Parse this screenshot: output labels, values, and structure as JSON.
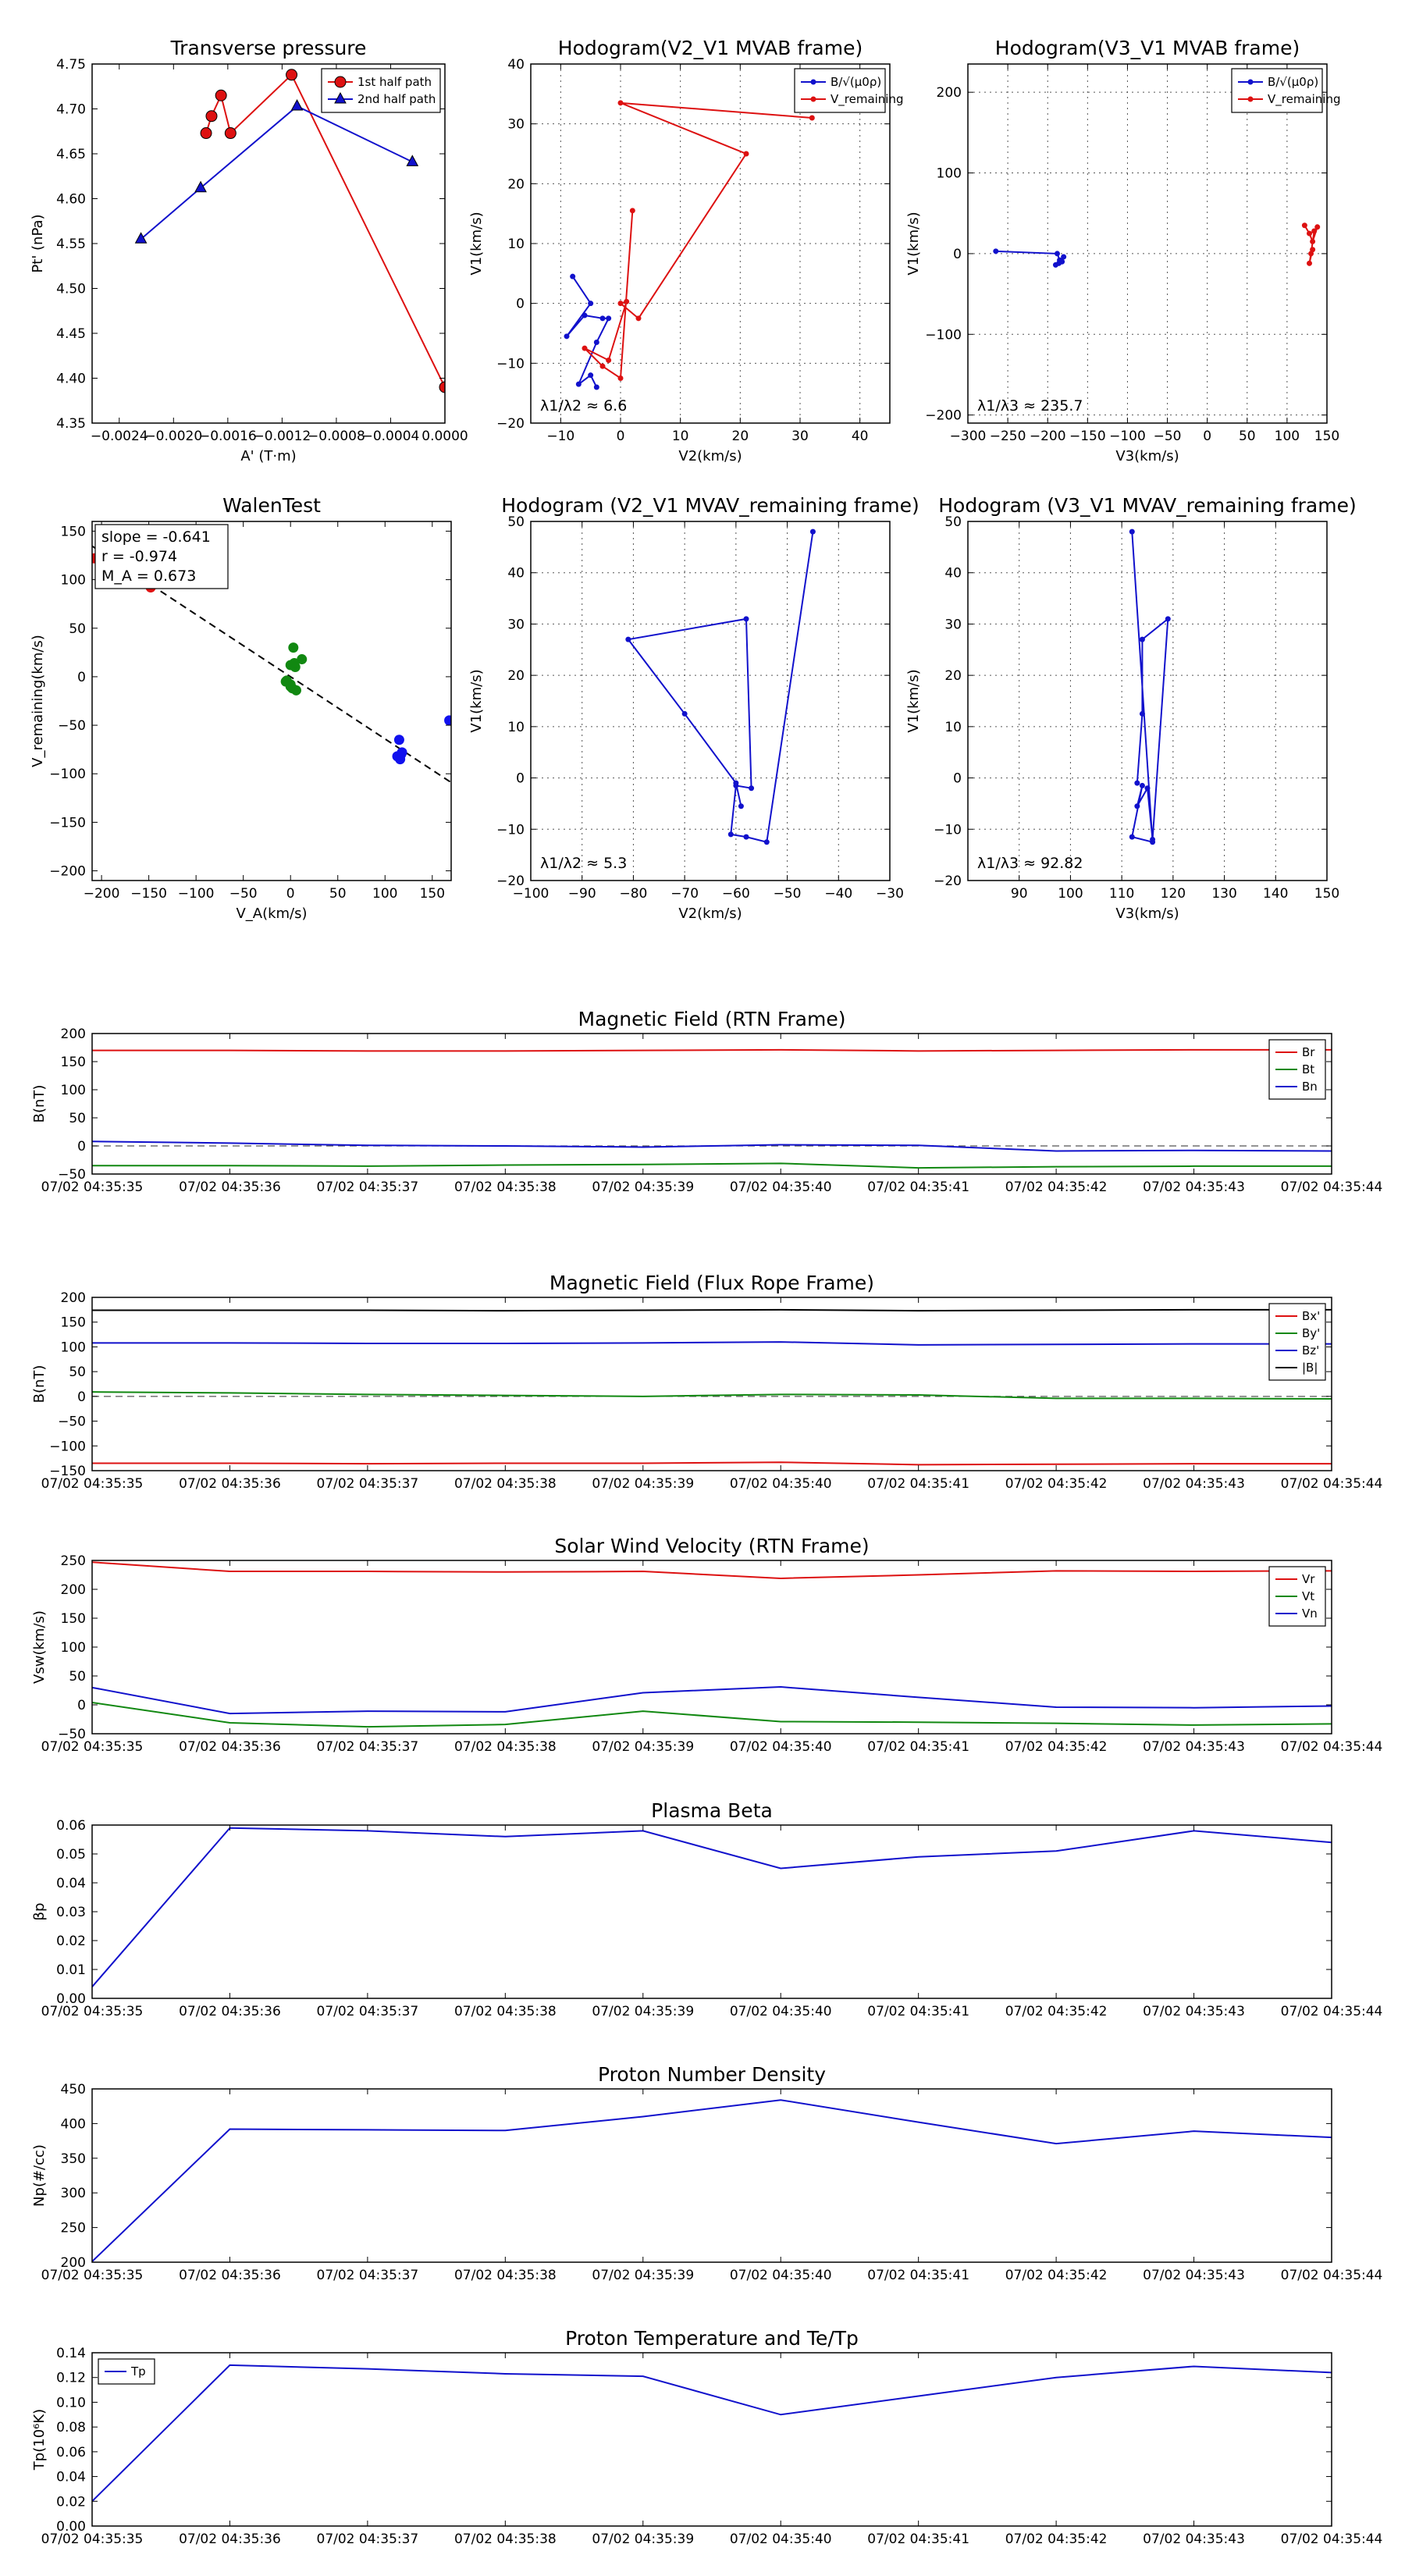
{
  "charts": [
    {
      "id": "tp",
      "type": "line",
      "title": "Transverse pressure",
      "xlabel": "A' (T·m)",
      "ylabel": "Pt' (nPa)",
      "xlim": [
        -0.0026,
        0.0
      ],
      "ylim": [
        4.35,
        4.75
      ],
      "xticks": [
        -0.0024,
        -0.002,
        -0.0016,
        -0.0012,
        -0.0008,
        -0.0004,
        0.0
      ],
      "xtick_labels": [
        "−0.0024",
        "−0.0020",
        "−0.0016",
        "−0.0012",
        "−0.0008",
        "−0.0004",
        "0.0000"
      ],
      "yticks": [
        4.35,
        4.4,
        4.45,
        4.5,
        4.55,
        4.6,
        4.65,
        4.7,
        4.75
      ],
      "ytick_labels": [
        "4.35",
        "4.40",
        "4.45",
        "4.50",
        "4.55",
        "4.60",
        "4.65",
        "4.70",
        "4.75"
      ],
      "grid": false,
      "legend_loc": "top-right",
      "series": [
        {
          "name": "1st half path",
          "color": "#dd1111",
          "marker": "circle",
          "x": [
            -0.00176,
            -0.00172,
            -0.00165,
            -0.00158,
            -0.00113,
            0.0
          ],
          "y": [
            4.673,
            4.692,
            4.715,
            4.673,
            4.738,
            4.39
          ]
        },
        {
          "name": "2nd half path",
          "color": "#1111cc",
          "marker": "triangle",
          "x": [
            -0.00224,
            -0.0018,
            -0.00109,
            -0.00024
          ],
          "y": [
            4.555,
            4.612,
            4.703,
            4.641
          ]
        }
      ]
    },
    {
      "id": "h1",
      "type": "line",
      "title": "Hodogram(V2_V1 MVAB frame)",
      "xlabel": "V2(km/s)",
      "ylabel": "V1(km/s)",
      "xlim": [
        -15,
        45
      ],
      "ylim": [
        -20,
        40
      ],
      "xticks": [
        -10,
        0,
        10,
        20,
        30,
        40
      ],
      "xtick_labels": [
        "−10",
        "0",
        "10",
        "20",
        "30",
        "40"
      ],
      "yticks": [
        -20,
        -10,
        0,
        10,
        20,
        30,
        40
      ],
      "ytick_labels": [
        "−20",
        "−10",
        "0",
        "10",
        "20",
        "30",
        "40"
      ],
      "grid": true,
      "legend_loc": "top-right",
      "annotation": "λ1/λ2 ≈ 6.6",
      "series": [
        {
          "name": "B/√(μ0ρ)",
          "color": "#1111cc",
          "marker": "dot",
          "x": [
            -8,
            -5,
            -9,
            -6,
            -3,
            -2,
            -4,
            -7,
            -5,
            -4
          ],
          "y": [
            4.5,
            0.0,
            -5.5,
            -2.0,
            -2.5,
            -2.5,
            -6.5,
            -13.5,
            -12.0,
            -14.0
          ]
        },
        {
          "name": "V_remaining",
          "color": "#dd1111",
          "marker": "dot",
          "x": [
            32,
            0,
            21,
            3,
            0,
            1,
            -2,
            -6,
            -3,
            0,
            2
          ],
          "y": [
            31,
            33.5,
            25,
            -2.5,
            0.0,
            0.3,
            -9.5,
            -7.5,
            -10.5,
            -12.5,
            15.5
          ]
        }
      ]
    },
    {
      "id": "h2",
      "type": "line",
      "title": "Hodogram(V3_V1 MVAB frame)",
      "xlabel": "V3(km/s)",
      "ylabel": "V1(km/s)",
      "xlim": [
        -300,
        150
      ],
      "ylim": [
        -210,
        235
      ],
      "xticks": [
        -300,
        -250,
        -200,
        -150,
        -100,
        -50,
        0,
        50,
        100,
        150
      ],
      "xtick_labels": [
        "−300",
        "−250",
        "−200",
        "−150",
        "−100",
        "−50",
        "0",
        "50",
        "100",
        "150"
      ],
      "yticks": [
        -200,
        -100,
        0,
        100,
        200
      ],
      "ytick_labels": [
        "−200",
        "−100",
        "0",
        "100",
        "200"
      ],
      "grid": true,
      "legend_loc": "top-right",
      "annotation": "λ1/λ3 ≈ 235.7",
      "series": [
        {
          "name": "B/√(μ0ρ)",
          "color": "#1111cc",
          "marker": "dot",
          "x": [
            -265,
            -188,
            -185,
            -190,
            -182,
            -180,
            -186
          ],
          "y": [
            3,
            0,
            -8,
            -14,
            -10,
            -4,
            -12
          ]
        },
        {
          "name": "V_remaining",
          "color": "#dd1111",
          "marker": "dot",
          "x": [
            122,
            128,
            132,
            138,
            134,
            130,
            128,
            132
          ],
          "y": [
            35,
            25,
            15,
            33,
            28,
            0,
            -12,
            5
          ]
        }
      ]
    },
    {
      "id": "walen",
      "type": "scatter",
      "title": "WalenTest",
      "xlabel": "V_A(km/s)",
      "ylabel": "V_remaining(km/s)",
      "xlim": [
        -210,
        170
      ],
      "ylim": [
        -210,
        160
      ],
      "xticks": [
        -200,
        -150,
        -100,
        -50,
        0,
        50,
        100,
        150
      ],
      "xtick_labels": [
        "−200",
        "−150",
        "−100",
        "−50",
        "0",
        "50",
        "100",
        "150"
      ],
      "yticks": [
        -200,
        -150,
        -100,
        -50,
        0,
        50,
        100,
        150
      ],
      "ytick_labels": [
        "−200",
        "−150",
        "−100",
        "−50",
        "0",
        "50",
        "100",
        "150"
      ],
      "grid": false,
      "fit": {
        "slope": -0.641,
        "x": [
          -210,
          170
        ]
      },
      "annotation_lines": [
        "slope = -0.641",
        "r = -0.974",
        "M_A = 0.673"
      ],
      "series": [
        {
          "name": "red",
          "color": "#dd1111",
          "x": [
            -208,
            -155,
            -150,
            -148
          ],
          "y": [
            122,
            100,
            96,
            92
          ]
        },
        {
          "name": "green",
          "color": "#118811",
          "x": [
            -5,
            0,
            3,
            5,
            12,
            0,
            -4,
            2,
            6,
            0,
            4
          ],
          "y": [
            -5,
            12,
            30,
            10,
            18,
            -8,
            -4,
            -12,
            -14,
            -10,
            14
          ]
        },
        {
          "name": "blue",
          "color": "#1111ee",
          "x": [
            115,
            117,
            116,
            113,
            118,
            168
          ],
          "y": [
            -65,
            -80,
            -85,
            -82,
            -78,
            -45
          ]
        }
      ]
    },
    {
      "id": "h3",
      "type": "line",
      "title": "Hodogram (V2_V1 MVAV_remaining frame)",
      "xlabel": "V2(km/s)",
      "ylabel": "V1(km/s)",
      "xlim": [
        -100,
        -30
      ],
      "ylim": [
        -20,
        50
      ],
      "xticks": [
        -100,
        -90,
        -80,
        -70,
        -60,
        -50,
        -40,
        -30
      ],
      "xtick_labels": [
        "−100",
        "−90",
        "−80",
        "−70",
        "−60",
        "−50",
        "−40",
        "−30"
      ],
      "yticks": [
        -20,
        -10,
        0,
        10,
        20,
        30,
        40,
        50
      ],
      "ytick_labels": [
        "−20",
        "−10",
        "0",
        "10",
        "20",
        "30",
        "40",
        "50"
      ],
      "grid": true,
      "annotation": "λ1/λ2 ≈ 5.3",
      "series": [
        {
          "name": "blue",
          "color": "#1111cc",
          "marker": "dot",
          "x": [
            -45,
            -54,
            -58,
            -61,
            -60,
            -57,
            -58,
            -81,
            -70,
            -60,
            -59
          ],
          "y": [
            48,
            -12.5,
            -11.5,
            -11,
            -1.5,
            -2,
            31,
            27,
            12.5,
            -1,
            -5.5
          ]
        }
      ]
    },
    {
      "id": "h4",
      "type": "line",
      "title": "Hodogram (V3_V1 MVAV_remaining frame)",
      "xlabel": "V3(km/s)",
      "ylabel": "V1(km/s)",
      "xlim": [
        80,
        150
      ],
      "ylim": [
        -20,
        50
      ],
      "xticks": [
        90,
        100,
        110,
        120,
        130,
        140,
        150
      ],
      "xtick_labels": [
        "90",
        "100",
        "110",
        "120",
        "130",
        "140",
        "150"
      ],
      "yticks": [
        -20,
        -10,
        0,
        10,
        20,
        30,
        40,
        50
      ],
      "ytick_labels": [
        "−20",
        "−10",
        "0",
        "10",
        "20",
        "30",
        "40",
        "50"
      ],
      "grid": true,
      "annotation": "λ1/λ3 ≈ 92.82",
      "series": [
        {
          "name": "blue",
          "color": "#1111cc",
          "marker": "dot",
          "x": [
            112,
            116,
            112,
            114,
            113,
            115,
            116,
            119,
            114,
            114,
            113
          ],
          "y": [
            48,
            -12.5,
            -11.5,
            -1.5,
            -5.5,
            -2,
            -12,
            31,
            27,
            12.5,
            -1
          ]
        }
      ]
    }
  ],
  "timeseries": {
    "time_labels": [
      "07/02 04:35:35",
      "07/02 04:35:36",
      "07/02 04:35:37",
      "07/02 04:35:38",
      "07/02 04:35:39",
      "07/02 04:35:40",
      "07/02 04:35:41",
      "07/02 04:35:42",
      "07/02 04:35:43",
      "07/02 04:35:44"
    ],
    "panels": [
      {
        "id": "brtn",
        "type": "line",
        "title": "Magnetic Field (RTN Frame)",
        "ylabel": "B(nT)",
        "ylim": [
          -50,
          200
        ],
        "yticks": [
          -50,
          0,
          50,
          100,
          150,
          200
        ],
        "ytick_labels": [
          "−50",
          "0",
          "50",
          "100",
          "150",
          "200"
        ],
        "zero_line": true,
        "legend": true,
        "series": [
          {
            "name": "Br",
            "color": "#dd1111",
            "values": [
              170,
              170,
              169,
              169,
              170,
              171,
              169,
              170,
              171,
              171
            ]
          },
          {
            "name": "Bt",
            "color": "#118811",
            "values": [
              -35,
              -35,
              -36,
              -34,
              -33,
              -31,
              -39,
              -37,
              -36,
              -36
            ]
          },
          {
            "name": "Bn",
            "color": "#1111cc",
            "values": [
              8,
              5,
              1,
              0,
              -2,
              2,
              1,
              -9,
              -8,
              -9
            ]
          }
        ]
      },
      {
        "id": "bfr",
        "type": "line",
        "title": "Magnetic Field (Flux Rope Frame)",
        "ylabel": "B(nT)",
        "ylim": [
          -150,
          200
        ],
        "yticks": [
          -150,
          -100,
          -50,
          0,
          50,
          100,
          150,
          200
        ],
        "ytick_labels": [
          "−150",
          "−100",
          "−50",
          "0",
          "50",
          "100",
          "150",
          "200"
        ],
        "zero_line": true,
        "legend": true,
        "series": [
          {
            "name": "Bx'",
            "color": "#dd1111",
            "values": [
              -135,
              -135,
              -136,
              -135,
              -135,
              -133,
              -138,
              -137,
              -136,
              -136
            ]
          },
          {
            "name": "By'",
            "color": "#118811",
            "values": [
              9,
              7,
              4,
              2,
              0,
              4,
              3,
              -4,
              -4,
              -5
            ]
          },
          {
            "name": "Bz'",
            "color": "#1111cc",
            "values": [
              108,
              108,
              107,
              107,
              108,
              110,
              104,
              105,
              106,
              106
            ]
          },
          {
            "name": "|B|",
            "color": "#000000",
            "values": [
              174,
              174,
              174,
              173,
              174,
              175,
              173,
              174,
              175,
              175
            ]
          }
        ]
      },
      {
        "id": "vsw",
        "type": "line",
        "title": "Solar Wind Velocity (RTN Frame)",
        "ylabel": "Vsw(km/s)",
        "ylim": [
          -50,
          250
        ],
        "yticks": [
          -50,
          0,
          50,
          100,
          150,
          200,
          250
        ],
        "ytick_labels": [
          "−50",
          "0",
          "50",
          "100",
          "150",
          "200",
          "250"
        ],
        "zero_line": false,
        "legend": true,
        "series": [
          {
            "name": "Vr",
            "color": "#dd1111",
            "values": [
              247,
              231,
              231,
              230,
              231,
              219,
              225,
              232,
              231,
              232
            ]
          },
          {
            "name": "Vt",
            "color": "#118811",
            "values": [
              4,
              -31,
              -38,
              -34,
              -11,
              -29,
              -30,
              -32,
              -35,
              -33
            ]
          },
          {
            "name": "Vn",
            "color": "#1111cc",
            "values": [
              30,
              -15,
              -11,
              -12,
              21,
              31,
              13,
              -4,
              -5,
              -2
            ]
          }
        ]
      },
      {
        "id": "beta",
        "type": "line",
        "title": "Plasma Beta",
        "ylabel": "βp",
        "ylim": [
          0.0,
          0.06
        ],
        "yticks": [
          0.0,
          0.01,
          0.02,
          0.03,
          0.04,
          0.05,
          0.06
        ],
        "ytick_labels": [
          "0.00",
          "0.01",
          "0.02",
          "0.03",
          "0.04",
          "0.05",
          "0.06"
        ],
        "zero_line": false,
        "legend": false,
        "series": [
          {
            "name": "beta",
            "color": "#1111cc",
            "values": [
              0.004,
              0.059,
              0.058,
              0.056,
              0.058,
              0.045,
              0.049,
              0.051,
              0.058,
              0.054
            ]
          }
        ]
      },
      {
        "id": "np",
        "type": "line",
        "title": "Proton Number Density",
        "ylabel": "Np(#/cc)",
        "ylim": [
          200,
          450
        ],
        "yticks": [
          200,
          250,
          300,
          350,
          400,
          450
        ],
        "ytick_labels": [
          "200",
          "250",
          "300",
          "350",
          "400",
          "450"
        ],
        "zero_line": false,
        "legend": false,
        "series": [
          {
            "name": "Np",
            "color": "#1111cc",
            "values": [
              201,
              392,
              391,
              390,
              410,
              434,
              402,
              371,
              389,
              380
            ]
          }
        ]
      },
      {
        "id": "tpp",
        "type": "line",
        "title": "Proton Temperature and Te/Tp",
        "ylabel": "Tp(10⁶K)",
        "ylim": [
          0.0,
          0.14
        ],
        "yticks": [
          0.0,
          0.02,
          0.04,
          0.06,
          0.08,
          0.1,
          0.12,
          0.14
        ],
        "ytick_labels": [
          "0.00",
          "0.02",
          "0.04",
          "0.06",
          "0.08",
          "0.10",
          "0.12",
          "0.14"
        ],
        "zero_line": false,
        "legend": true,
        "legend_loc": "top-left",
        "series": [
          {
            "name": "Tp",
            "color": "#1111cc",
            "values": [
              0.02,
              0.13,
              0.127,
              0.123,
              0.121,
              0.09,
              0.105,
              0.12,
              0.129,
              0.124
            ]
          }
        ]
      }
    ]
  }
}
